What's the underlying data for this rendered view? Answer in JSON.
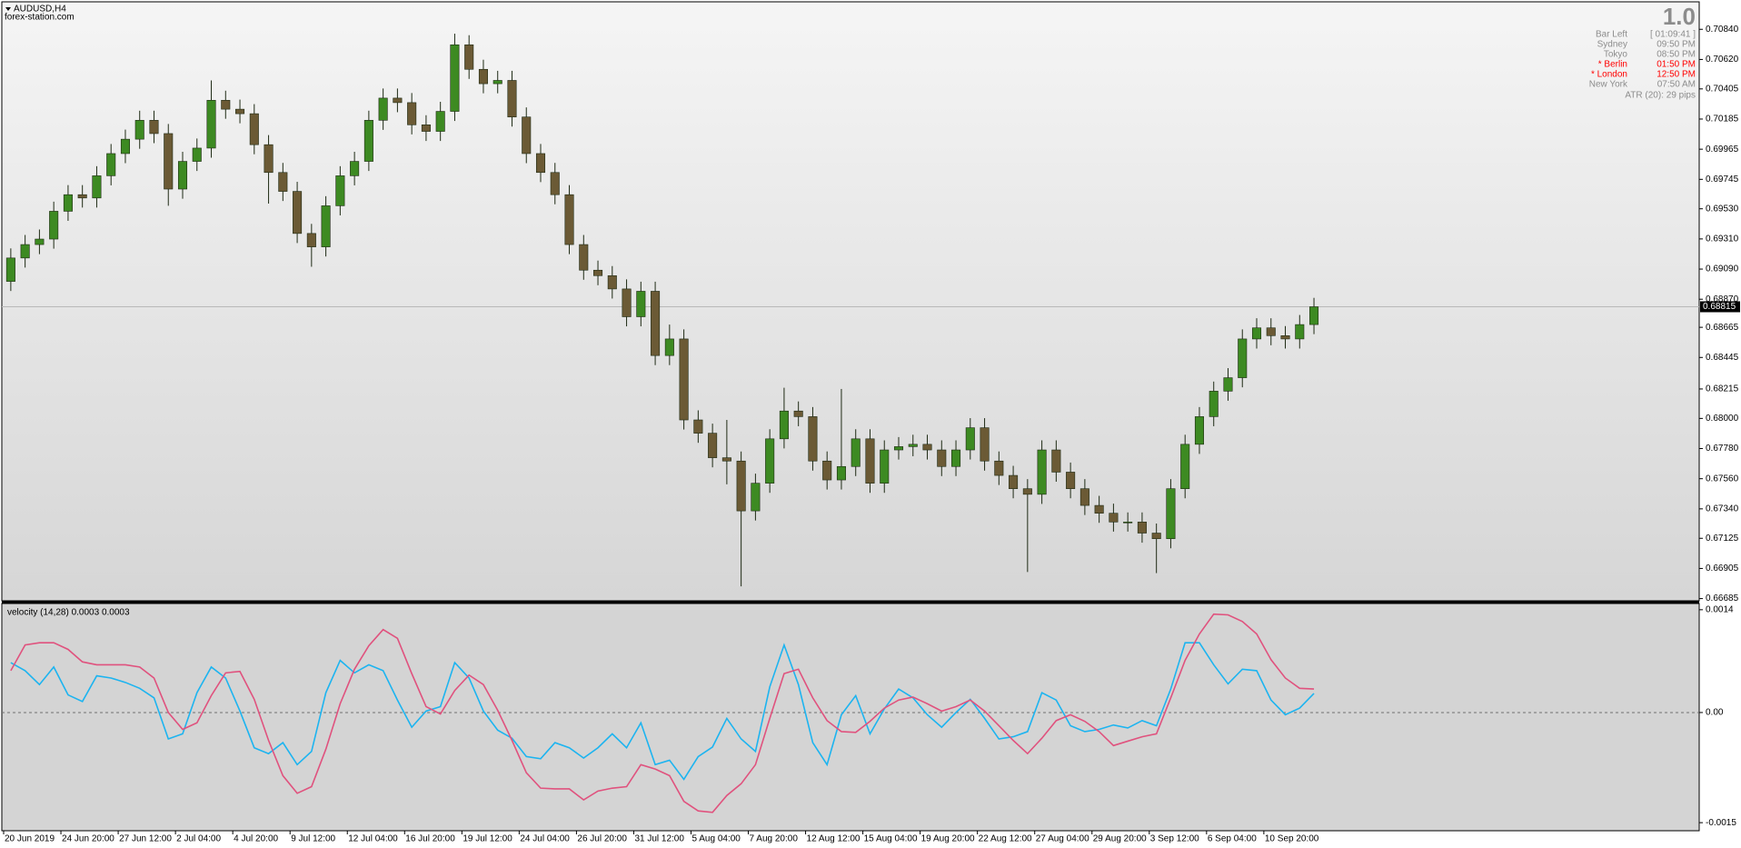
{
  "window": {
    "symbol_title": "AUDUSD,H4",
    "site": "forex-station.com"
  },
  "info_panel": {
    "spread": "1.0",
    "rows": [
      {
        "label": "Bar Left",
        "value": "[ 01:09:41 ]",
        "color": "#8c8c8c"
      },
      {
        "label": "Sydney",
        "value": "09:50 PM",
        "color": "#8c8c8c"
      },
      {
        "label": "Tokyo",
        "value": "08:50 PM",
        "color": "#8c8c8c"
      },
      {
        "label": "* Berlin",
        "value": "01:50 PM",
        "color": "#ff0000"
      },
      {
        "label": "* London",
        "value": "12:50 PM",
        "color": "#ff0000"
      },
      {
        "label": "New York",
        "value": "07:50 AM",
        "color": "#8c8c8c"
      }
    ],
    "atr": "ATR (20): 29 pips"
  },
  "chart_data": [
    {
      "type": "candlestick",
      "categories": [
        "20 Jun 2019",
        null,
        null,
        null,
        "24 Jun 20:00",
        null,
        null,
        null,
        "27 Jun 12:00",
        null,
        null,
        null,
        "2 Jul 04:00",
        null,
        null,
        null,
        "4 Jul 20:00",
        null,
        null,
        null,
        "9 Jul 12:00",
        null,
        null,
        null,
        "12 Jul 04:00",
        null,
        null,
        null,
        "16 Jul 20:00",
        null,
        null,
        null,
        "19 Jul 12:00",
        null,
        null,
        null,
        "24 Jul 04:00",
        null,
        null,
        null,
        "26 Jul 20:00",
        null,
        null,
        null,
        "31 Jul 12:00",
        null,
        null,
        null,
        "5 Aug 04:00",
        null,
        null,
        null,
        "7 Aug 20:00",
        null,
        null,
        null,
        "12 Aug 12:00",
        null,
        null,
        null,
        "15 Aug 04:00",
        null,
        null,
        null,
        "19 Aug 20:00",
        null,
        null,
        null,
        "22 Aug 12:00",
        null,
        null,
        null,
        "27 Aug 04:00",
        null,
        null,
        null,
        "29 Aug 20:00",
        null,
        null,
        null,
        "3 Sep 12:00",
        null,
        null,
        null,
        "6 Sep 04:00",
        null,
        null,
        null,
        "10 Sep 20:00",
        null,
        null,
        null
      ],
      "open": [
        0.69,
        0.69171,
        0.69269,
        0.69309,
        0.69512,
        0.69633,
        0.69609,
        0.69771,
        0.69933,
        0.70038,
        0.70176,
        0.70079,
        0.69674,
        0.69876,
        0.69973,
        0.70322,
        0.70257,
        0.70224,
        0.69998,
        0.69795,
        0.69657,
        0.6935,
        0.69252,
        0.69552,
        0.69771,
        0.69876,
        0.70176,
        0.70338,
        0.70305,
        0.70143,
        0.70095,
        0.70241,
        0.70727,
        0.70548,
        0.70443,
        0.70467,
        0.702,
        0.69933,
        0.69795,
        0.69633,
        0.69269,
        0.69082,
        0.69042,
        0.68945,
        0.68742,
        0.68928,
        0.68459,
        0.6858,
        0.67989,
        0.67892,
        0.67713,
        0.67689,
        0.67325,
        0.67527,
        0.67851,
        0.68054,
        0.68013,
        0.67689,
        0.67551,
        0.67649,
        0.67851,
        0.67527,
        0.6777,
        0.67794,
        0.67811,
        0.6777,
        0.67649,
        0.6777,
        0.67932,
        0.67689,
        0.67584,
        0.67487,
        0.67446,
        0.6777,
        0.67608,
        0.67487,
        0.67365,
        0.67308,
        0.67244,
        0.67244,
        0.67163,
        0.67122,
        0.67487,
        0.67811,
        0.68013,
        0.68199,
        0.68297,
        0.6858,
        0.68661,
        0.68604,
        0.6858,
        0.68685
      ],
      "high": [
        0.69241,
        0.69339,
        0.69379,
        0.69582,
        0.69703,
        0.69703,
        0.69841,
        0.70003,
        0.70108,
        0.70246,
        0.70246,
        0.70149,
        0.69946,
        0.70043,
        0.70467,
        0.70392,
        0.70327,
        0.70294,
        0.70068,
        0.69865,
        0.69727,
        0.6942,
        0.69622,
        0.69841,
        0.69946,
        0.70246,
        0.70408,
        0.70408,
        0.70375,
        0.70213,
        0.70311,
        0.70808,
        0.70797,
        0.70618,
        0.70537,
        0.70537,
        0.7027,
        0.70003,
        0.69865,
        0.69703,
        0.69339,
        0.69152,
        0.69112,
        0.69015,
        0.68998,
        0.68998,
        0.68685,
        0.6865,
        0.68059,
        0.67962,
        0.67989,
        0.67759,
        0.67597,
        0.67921,
        0.68224,
        0.68124,
        0.68083,
        0.67759,
        0.68215,
        0.67921,
        0.67921,
        0.6784,
        0.67864,
        0.67881,
        0.67881,
        0.6784,
        0.6784,
        0.68002,
        0.68002,
        0.67759,
        0.67654,
        0.67557,
        0.6784,
        0.6784,
        0.67678,
        0.67557,
        0.67435,
        0.67378,
        0.67314,
        0.67314,
        0.67233,
        0.67557,
        0.67881,
        0.68083,
        0.68269,
        0.68367,
        0.6865,
        0.68731,
        0.68731,
        0.68674,
        0.68755,
        0.6888
      ],
      "low": [
        0.6893,
        0.69101,
        0.69199,
        0.69239,
        0.69442,
        0.69539,
        0.69539,
        0.69701,
        0.69863,
        0.69968,
        0.70009,
        0.69552,
        0.69604,
        0.69806,
        0.69903,
        0.70187,
        0.70154,
        0.69928,
        0.69568,
        0.69587,
        0.6928,
        0.69107,
        0.69182,
        0.69482,
        0.69701,
        0.69806,
        0.70106,
        0.70235,
        0.70073,
        0.70025,
        0.70025,
        0.70171,
        0.70478,
        0.70373,
        0.70373,
        0.7013,
        0.69863,
        0.69725,
        0.69563,
        0.69199,
        0.69012,
        0.68972,
        0.68875,
        0.68672,
        0.68672,
        0.68389,
        0.68389,
        0.67919,
        0.67822,
        0.67643,
        0.67519,
        0.66774,
        0.67255,
        0.67457,
        0.67781,
        0.67943,
        0.67619,
        0.67481,
        0.67481,
        0.67579,
        0.67457,
        0.67457,
        0.677,
        0.67724,
        0.677,
        0.67579,
        0.67579,
        0.677,
        0.67619,
        0.67514,
        0.67417,
        0.66879,
        0.67376,
        0.67538,
        0.67417,
        0.67295,
        0.67238,
        0.67174,
        0.67174,
        0.67093,
        0.66871,
        0.67052,
        0.67417,
        0.67741,
        0.67943,
        0.68129,
        0.68227,
        0.6851,
        0.68534,
        0.6851,
        0.6851,
        0.68615
      ],
      "close": [
        0.69171,
        0.69269,
        0.69309,
        0.69512,
        0.69633,
        0.69609,
        0.69771,
        0.69933,
        0.70038,
        0.70176,
        0.70079,
        0.69674,
        0.69876,
        0.69973,
        0.70322,
        0.70257,
        0.70224,
        0.69998,
        0.69795,
        0.69657,
        0.6935,
        0.69252,
        0.69552,
        0.69771,
        0.69876,
        0.70176,
        0.70338,
        0.70305,
        0.70143,
        0.70095,
        0.70241,
        0.70727,
        0.70548,
        0.70443,
        0.70467,
        0.702,
        0.69933,
        0.69795,
        0.69633,
        0.69269,
        0.69082,
        0.69042,
        0.68945,
        0.68742,
        0.68928,
        0.68459,
        0.6858,
        0.67989,
        0.67892,
        0.67713,
        0.67689,
        0.67325,
        0.67527,
        0.67851,
        0.68054,
        0.68013,
        0.67689,
        0.67551,
        0.67649,
        0.67851,
        0.67527,
        0.6777,
        0.67794,
        0.67811,
        0.6777,
        0.67649,
        0.6777,
        0.67932,
        0.67689,
        0.67584,
        0.67487,
        0.67446,
        0.6777,
        0.67608,
        0.67487,
        0.67365,
        0.67308,
        0.67244,
        0.67244,
        0.67163,
        0.67122,
        0.67487,
        0.67811,
        0.68013,
        0.68199,
        0.68297,
        0.6858,
        0.68661,
        0.68604,
        0.6858,
        0.68685,
        0.68815
      ],
      "up_color": "#3d8a22",
      "down_color": "#6b5a35",
      "wick_color": "#1e2a14",
      "current_price": 0.68815,
      "ylim": [
        0.66669,
        0.71034
      ],
      "yticks": [
        {
          "value": 0.7084,
          "label": "0.70840"
        },
        {
          "value": 0.7062,
          "label": "0.70620"
        },
        0.70405,
        0.70185,
        0.69965,
        0.69745,
        {
          "value": 0.6953,
          "label": "0.69530"
        },
        {
          "value": 0.6931,
          "label": "0.69310"
        },
        {
          "value": 0.6909,
          "label": "0.69090"
        },
        {
          "value": 0.6887,
          "label": "0.68870"
        },
        0.68665,
        0.68445,
        0.68215,
        {
          "value": 0.68,
          "label": "0.68000"
        },
        {
          "value": 0.6778,
          "label": "0.67780"
        },
        {
          "value": 0.6756,
          "label": "0.67560"
        },
        {
          "value": 0.6734,
          "label": "0.67340"
        },
        0.67125,
        0.66905,
        0.66685
      ]
    },
    {
      "type": "line",
      "title": "velocity (14,28) 0.0003 0.0003",
      "series": [
        {
          "color": "#1cb4f0",
          "values": [
            0.00068,
            0.00057,
            0.00038,
            0.00062,
            0.00024,
            0.00015,
            0.0005,
            0.00047,
            0.00041,
            0.00033,
            0.0002,
            -0.00036,
            -0.00029,
            0.00027,
            0.00062,
            0.00047,
            2e-05,
            -0.00048,
            -0.00056,
            -0.00041,
            -0.00071,
            -0.00053,
            0.00027,
            0.00071,
            0.00054,
            0.00065,
            0.00057,
            0.00017,
            -0.0002,
            2e-05,
            8e-05,
            0.00068,
            0.00047,
            2e-05,
            -0.00024,
            -0.00035,
            -0.0006,
            -0.00063,
            -0.00041,
            -0.00048,
            -0.00062,
            -0.00048,
            -0.00029,
            -0.00048,
            -0.00014,
            -0.00071,
            -0.00065,
            -0.00091,
            -0.0006,
            -0.00047,
            -8e-05,
            -0.00036,
            -0.00053,
            0.00035,
            0.00092,
            0.00038,
            -0.00041,
            -0.00071,
            -3e-05,
            0.00023,
            -0.00029,
            5e-05,
            0.00032,
            0.0002,
            -3e-05,
            -0.0002,
            0,
            0.00018,
            -8e-05,
            -0.00036,
            -0.00033,
            -0.00026,
            0.00027,
            0.00017,
            -0.00018,
            -0.00026,
            -0.00023,
            -0.00017,
            -0.00021,
            -0.00011,
            -0.00018,
            0.00032,
            0.00095,
            0.00095,
            0.00065,
            0.00039,
            0.00059,
            0.00057,
            0.00017,
            -3e-05,
            6e-05,
            0.00026
          ]
        },
        {
          "color": "#e0527e",
          "values": [
            0.00057,
            0.00092,
            0.00095,
            0.00095,
            0.00086,
            0.00069,
            0.00065,
            0.00065,
            0.00065,
            0.00062,
            0.00047,
            0,
            -0.00023,
            -0.00014,
            0.00023,
            0.00054,
            0.00056,
            0.00018,
            -0.00038,
            -0.00086,
            -0.0011,
            -0.00101,
            -0.0005,
            0.00012,
            0.00059,
            0.00091,
            0.00113,
            0.00101,
            0.00053,
            8e-05,
            -2e-05,
            0.0003,
            0.00051,
            0.00038,
            3e-05,
            -0.00038,
            -0.00082,
            -0.00103,
            -0.00104,
            -0.00104,
            -0.00119,
            -0.00107,
            -0.00103,
            -0.00101,
            -0.00071,
            -0.00077,
            -0.00086,
            -0.00121,
            -0.00134,
            -0.00136,
            -0.00113,
            -0.00097,
            -0.00071,
            -8e-05,
            0.00053,
            0.00059,
            0.0002,
            -0.00011,
            -0.00026,
            -0.00027,
            -0.00012,
            6e-05,
            0.00017,
            0.00021,
            0.00012,
            2e-05,
            8e-05,
            0.00017,
            2e-05,
            -0.00018,
            -0.00038,
            -0.00056,
            -0.00035,
            -0.00011,
            -3e-05,
            -0.00012,
            -0.00026,
            -0.00045,
            -0.00039,
            -0.00033,
            -0.00029,
            0.0002,
            0.00071,
            0.00107,
            0.00134,
            0.00133,
            0.00124,
            0.00107,
            0.00072,
            0.00047,
            0.00033,
            0.00032
          ]
        }
      ],
      "zero_line": true,
      "ylim": [
        -0.00161,
        0.00146
      ],
      "yticks": [
        0.0014,
        {
          "value": 0,
          "label": "0.00"
        },
        -0.0015
      ]
    }
  ]
}
